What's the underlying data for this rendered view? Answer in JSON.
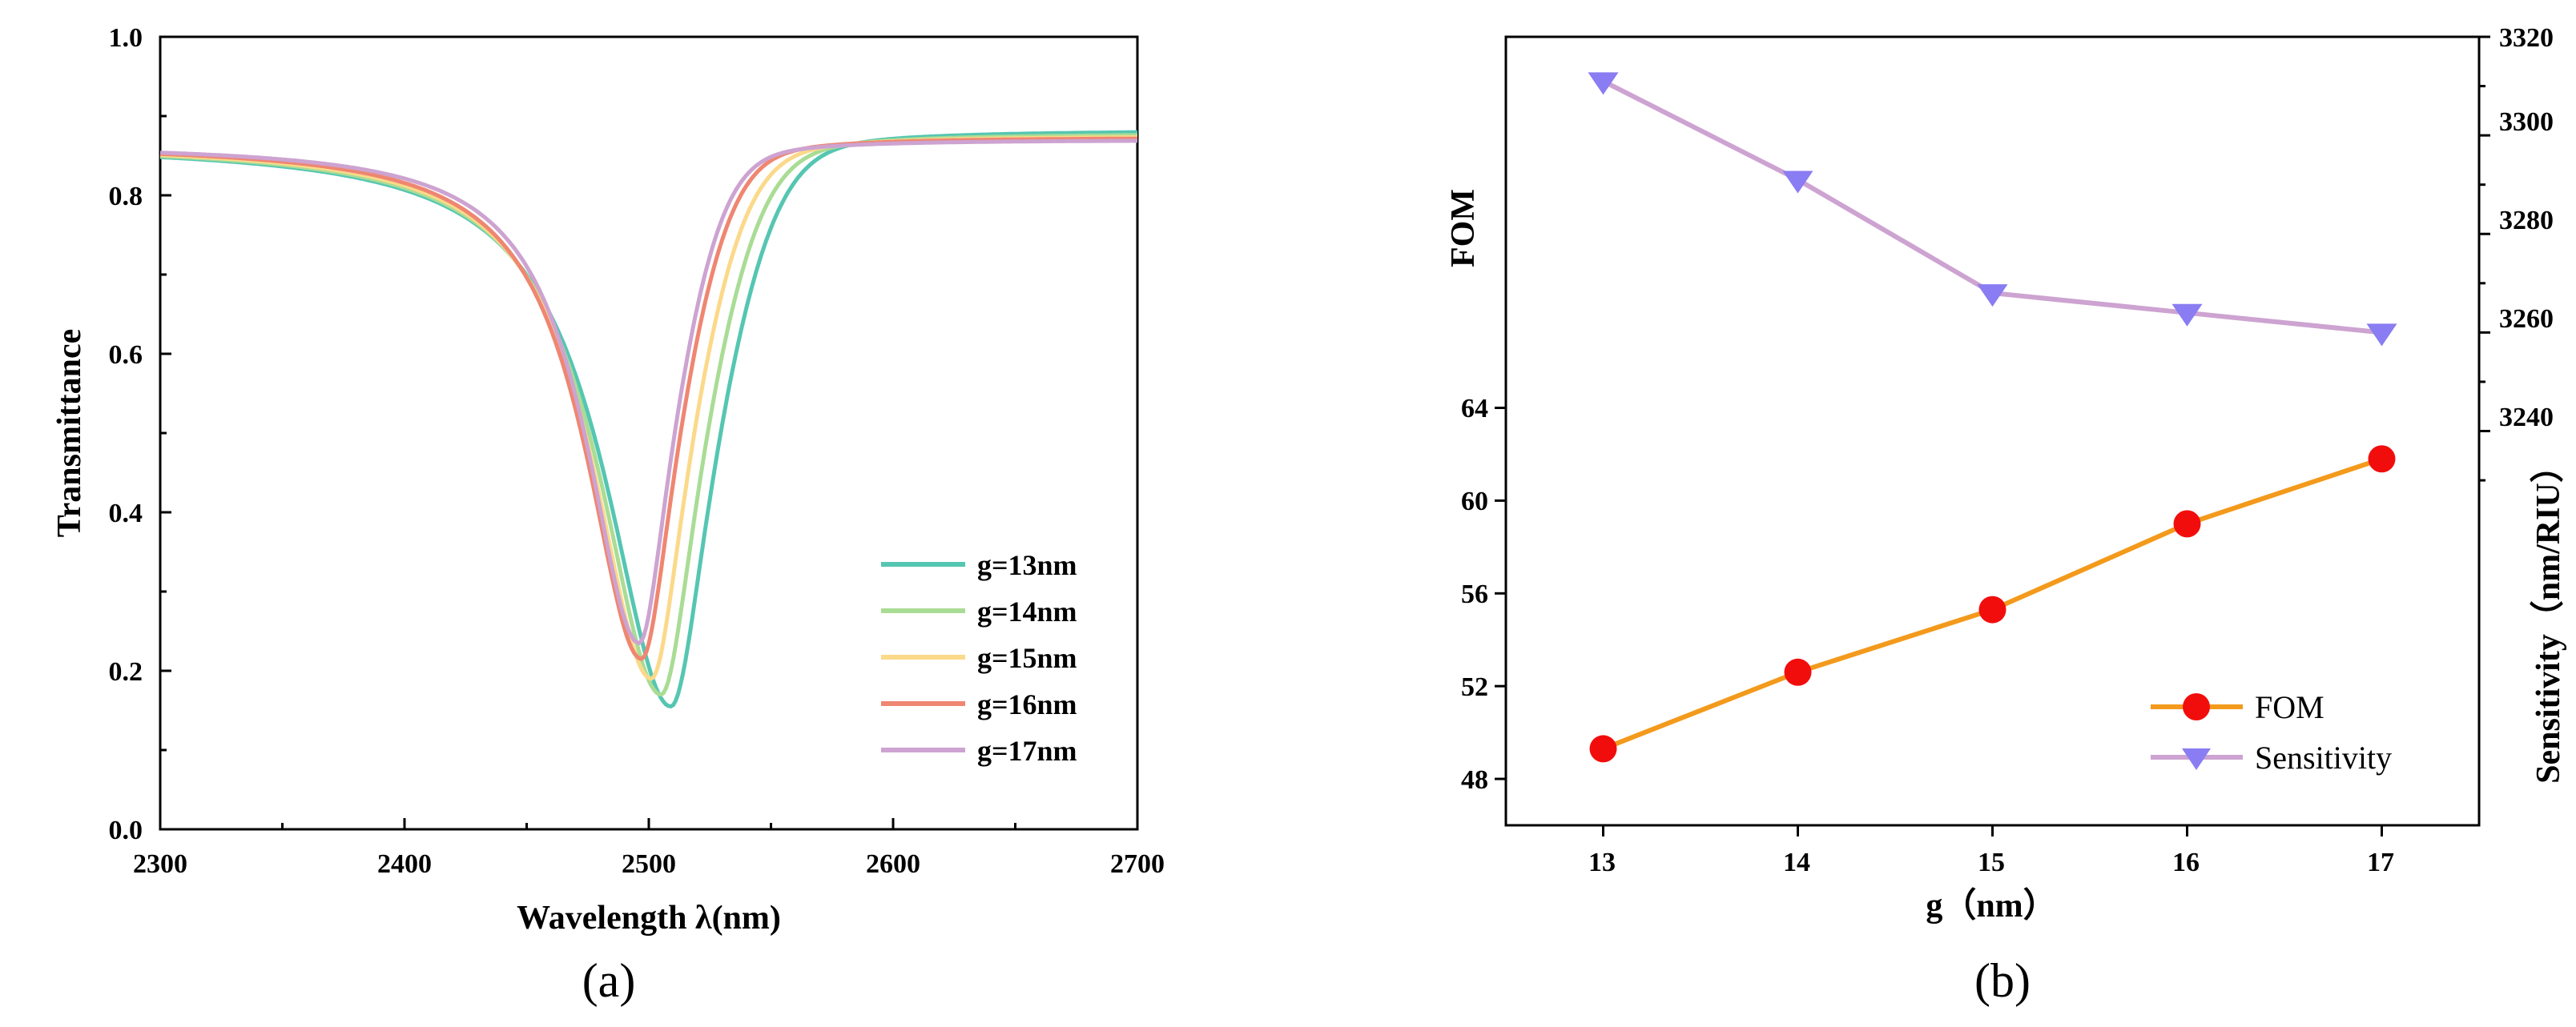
{
  "chart_data": [
    {
      "type": "line",
      "panel_label": "(a)",
      "xlabel": "Wavelength λ(nm)",
      "ylabel": "Transmittance",
      "xlim": [
        2300,
        2700
      ],
      "ylim": [
        0.0,
        1.0
      ],
      "xticks": [
        "2300",
        "2400",
        "2500",
        "2600",
        "2700"
      ],
      "yticks": [
        "0.0",
        "0.2",
        "0.4",
        "0.6",
        "0.8",
        "1.0"
      ],
      "legend_position": "lower-right",
      "series": [
        {
          "name": "g=13nm",
          "color": "#55c6b2",
          "dip_x": 2509,
          "dip_y": 0.155,
          "base": 0.865,
          "plateau": 0.882,
          "width": 31
        },
        {
          "name": "g=14nm",
          "color": "#a9dc95",
          "dip_x": 2505,
          "dip_y": 0.17,
          "base": 0.865,
          "plateau": 0.878,
          "width": 29.5
        },
        {
          "name": "g=15nm",
          "color": "#fbd98a",
          "dip_x": 2501,
          "dip_y": 0.19,
          "base": 0.865,
          "plateau": 0.875,
          "width": 28
        },
        {
          "name": "g=16nm",
          "color": "#ef8671",
          "dip_x": 2497,
          "dip_y": 0.215,
          "base": 0.865,
          "plateau": 0.873,
          "width": 26.5
        },
        {
          "name": "g=17nm",
          "color": "#cda3d1",
          "dip_x": 2496,
          "dip_y": 0.235,
          "base": 0.865,
          "plateau": 0.87,
          "width": 25
        }
      ]
    },
    {
      "type": "line",
      "panel_label": "(b)",
      "xlabel": "g（nm）",
      "ylabel_left": "FOM",
      "ylabel_right": "Sensitivity（nm/RIU）",
      "x": [
        13,
        14,
        15,
        16,
        17
      ],
      "xticks": [
        "13",
        "14",
        "15",
        "16",
        "17"
      ],
      "xlim": [
        12.5,
        17.5
      ],
      "ylim_left": [
        46,
        80
      ],
      "yticks_left": [
        "48",
        "52",
        "56",
        "60",
        "64"
      ],
      "ylim_right": [
        3160,
        3320
      ],
      "yticks_right": [
        "3240",
        "3260",
        "3280",
        "3300",
        "3320"
      ],
      "legend_position": "lower-right",
      "series": [
        {
          "name": "FOM",
          "axis": "left",
          "color": "#f39a1c",
          "marker_color": "#f20d0d",
          "marker": "circle",
          "values": [
            49.3,
            52.6,
            55.3,
            59.0,
            61.8
          ]
        },
        {
          "name": "Sensitivity",
          "axis": "right",
          "color": "#cda3d1",
          "marker_color": "#8a7cf2",
          "marker": "triangle-down",
          "values": [
            3311,
            3291,
            3268,
            3264,
            3260
          ]
        }
      ]
    }
  ]
}
